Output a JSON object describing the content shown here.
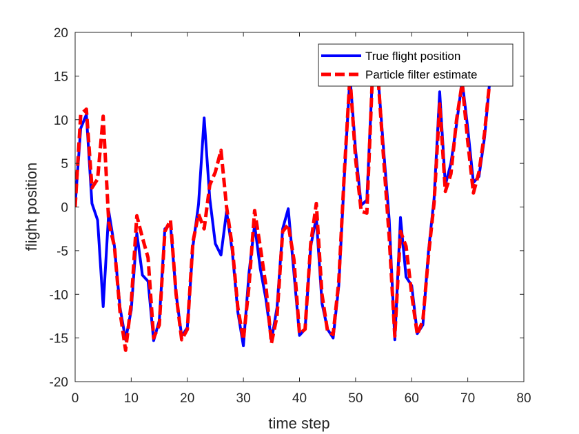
{
  "chart_data": {
    "type": "line",
    "title": "",
    "xlabel": "time step",
    "ylabel": "flight position",
    "xlim": [
      0,
      80
    ],
    "ylim": [
      -20,
      20
    ],
    "xticks": [
      0,
      10,
      20,
      30,
      40,
      50,
      60,
      70,
      80
    ],
    "yticks": [
      -20,
      -15,
      -10,
      -5,
      0,
      5,
      10,
      15,
      20
    ],
    "grid": false,
    "legend_position": "top-right",
    "x": [
      0,
      1,
      2,
      3,
      4,
      5,
      6,
      7,
      8,
      9,
      10,
      11,
      12,
      13,
      14,
      15,
      16,
      17,
      18,
      19,
      20,
      21,
      22,
      23,
      24,
      25,
      26,
      27,
      28,
      29,
      30,
      31,
      32,
      33,
      34,
      35,
      36,
      37,
      38,
      39,
      40,
      41,
      42,
      43,
      44,
      45,
      46,
      47,
      48,
      49,
      50,
      51,
      52,
      53,
      54,
      55,
      56,
      57,
      58,
      59,
      60,
      61,
      62,
      63,
      64,
      65,
      66,
      67,
      68,
      69,
      70,
      71,
      72,
      73,
      74
    ],
    "series": [
      {
        "name": "True flight position",
        "color": "#0000ff",
        "style": "solid",
        "values": [
          0.2,
          9.0,
          10.6,
          0.4,
          -1.5,
          -11.4,
          -0.5,
          -4.5,
          -11.5,
          -15.2,
          -11.8,
          -3.0,
          -7.8,
          -8.5,
          -15.3,
          -13.0,
          -2.5,
          -2.0,
          -10.0,
          -14.8,
          -13.8,
          -4.5,
          0.3,
          10.2,
          1.0,
          -4.2,
          -5.5,
          -0.5,
          -5.0,
          -12.0,
          -15.9,
          -7.5,
          -2.0,
          -7.0,
          -10.5,
          -15.3,
          -11.5,
          -2.5,
          -0.2,
          -7.5,
          -14.7,
          -14.0,
          -4.5,
          -1.2,
          -11.0,
          -14.0,
          -15.0,
          -9.0,
          3.5,
          15.0,
          6.5,
          0.2,
          0.8,
          15.0,
          15.0,
          6.5,
          -1.5,
          -15.2,
          -1.2,
          -8.0,
          -9.0,
          -14.5,
          -13.5,
          -5.0,
          1.0,
          13.2,
          2.5,
          5.0,
          9.5,
          14.5,
          9.0,
          2.8,
          3.5,
          8.0,
          15.0
        ]
      },
      {
        "name": "Particle filter estimate",
        "color": "#ff0000",
        "style": "dashed",
        "values": [
          0.0,
          10.6,
          11.2,
          2.2,
          3.2,
          10.4,
          -1.8,
          -4.5,
          -12.0,
          -16.4,
          -11.0,
          -1.0,
          -3.5,
          -5.8,
          -15.0,
          -13.5,
          -2.8,
          -1.5,
          -10.0,
          -15.2,
          -14.0,
          -4.0,
          -0.8,
          -2.5,
          2.5,
          4.0,
          6.5,
          0.0,
          -4.5,
          -11.5,
          -15.2,
          -9.0,
          -0.4,
          -4.5,
          -9.0,
          -15.6,
          -12.5,
          -2.8,
          -2.0,
          -6.0,
          -14.5,
          -14.0,
          -4.2,
          0.4,
          -10.0,
          -14.2,
          -14.6,
          -8.5,
          4.0,
          15.0,
          5.5,
          -0.5,
          -0.7,
          15.0,
          15.0,
          5.5,
          -3.5,
          -14.8,
          -2.8,
          -4.5,
          -10.0,
          -14.6,
          -13.0,
          -5.5,
          0.5,
          11.8,
          1.8,
          3.8,
          10.0,
          14.2,
          7.5,
          1.6,
          4.0,
          8.5,
          15.0
        ]
      }
    ]
  }
}
